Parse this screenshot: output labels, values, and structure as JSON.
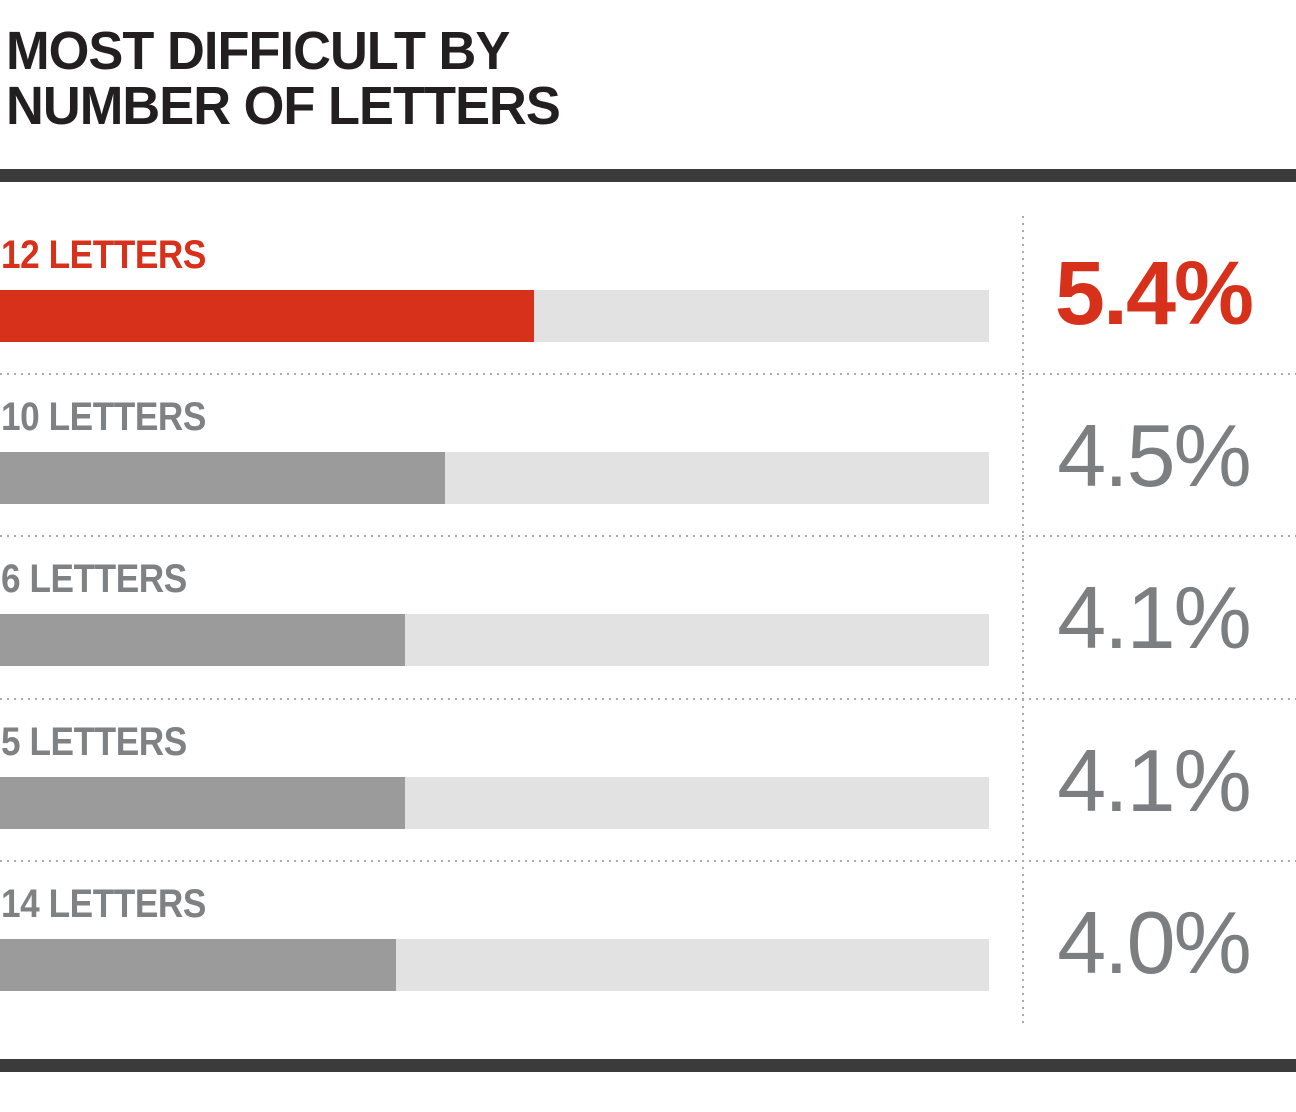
{
  "title": {
    "line1": "MOST DIFFICULT BY",
    "line2": "NUMBER OF LETTERS"
  },
  "chart_data": {
    "type": "bar",
    "orientation": "horizontal",
    "title": "MOST DIFFICULT BY NUMBER OF LETTERS",
    "xlim": [
      0,
      10
    ],
    "unit": "%",
    "grid": "dotted row separators and dotted value-column divider",
    "legend": null,
    "rows": [
      {
        "label": "12 LETTERS",
        "value": 5.4,
        "value_label": "5.4%",
        "highlight": true
      },
      {
        "label": "10 LETTERS",
        "value": 4.5,
        "value_label": "4.5%",
        "highlight": false
      },
      {
        "label": "6 LETTERS",
        "value": 4.1,
        "value_label": "4.1%",
        "highlight": false
      },
      {
        "label": "5 LETTERS",
        "value": 4.1,
        "value_label": "4.1%",
        "highlight": false
      },
      {
        "label": "14 LETTERS",
        "value": 4.0,
        "value_label": "4.0%",
        "highlight": false
      }
    ]
  },
  "colors": {
    "accent_red": "#d8311b",
    "bar_gray": "#9b9b9b",
    "track_gray": "#e2e2e2",
    "label_gray": "#7f8285",
    "value_gray": "#7c7f82",
    "title_dark": "#231f20",
    "rule_dark": "#3b3b3b",
    "dot_gray": "#ababab",
    "background": "#ffffff"
  }
}
